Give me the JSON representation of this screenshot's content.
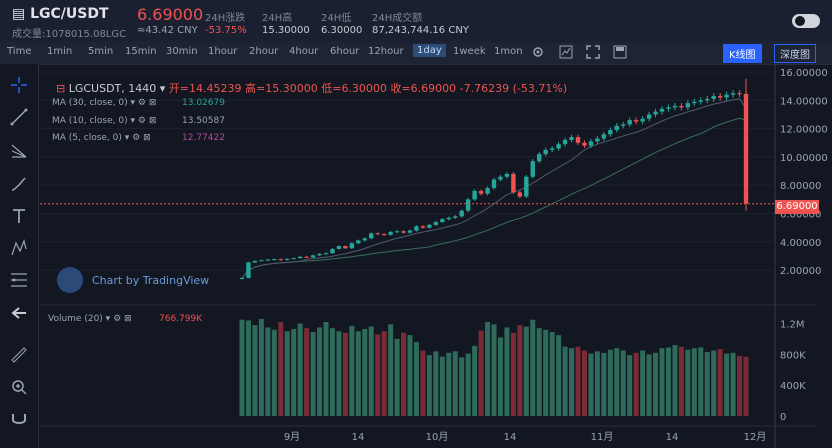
{
  "header": {
    "symbol": "LGC/USDT",
    "volume_label": "成交量:1078015.08LGC",
    "price": "6.69000",
    "cny": "≈43.42 CNY",
    "stats": [
      {
        "label": "24H涨跌",
        "value": "-53.75%",
        "color": "#ef5350"
      },
      {
        "label": "24H高",
        "value": "15.30000",
        "color": "#c8cbd2"
      },
      {
        "label": "24H低",
        "value": "6.30000",
        "color": "#c8cbd2"
      },
      {
        "label": "24H成交额",
        "value": "87,243,744.16 CNY",
        "color": "#c8cbd2"
      }
    ]
  },
  "toolbar": {
    "intervals": [
      "Time",
      "1min",
      "5min",
      "15min",
      "30min",
      "1hour",
      "2hour",
      "4hour",
      "6hour",
      "12hour",
      "1day",
      "1week",
      "1mon"
    ],
    "active": "1day",
    "kline_label": "K线图",
    "depth_label": "深度图"
  },
  "chart_header": {
    "symbol": "LGCUSDT, 1440",
    "open_label": "开=",
    "open": "14.45239",
    "high_label": "高=",
    "high": "15.30000",
    "low_label": "低=",
    "low": "6.30000",
    "close_label": "收=",
    "close": "6.69000",
    "change": "-7.76239 (-53.71%)"
  },
  "indicators": [
    {
      "label": "MA (30, close, 0)",
      "value": "13.02679",
      "color": "#26a69a"
    },
    {
      "label": "MA (10, close, 0)",
      "value": "13.50587",
      "color": "#9aa4b2"
    },
    {
      "label": "MA (5, close, 0)",
      "value": "12.77422",
      "color": "#b04a9a"
    }
  ],
  "watermark": "Chart by TradingView",
  "volume_legend": {
    "label": "Volume (20)",
    "value": "766.799K"
  },
  "current_price_label": "6.69000",
  "colors": {
    "up": "#26a69a",
    "down": "#ef5350",
    "bg": "#131722"
  },
  "chart_data": [
    {
      "type": "candlestick",
      "x_ticks": [
        "9月",
        "14",
        "10月",
        "14",
        "11月",
        "14",
        "12月"
      ],
      "y_ticks": [
        "2.00000",
        "4.00000",
        "6.00000",
        "8.00000",
        "10.00000",
        "12.00000",
        "14.00000",
        "16.00000"
      ],
      "ylim": [
        0.6,
        16.0
      ],
      "close_series": [
        1.45,
        2.55,
        2.65,
        2.7,
        2.75,
        2.78,
        2.72,
        2.8,
        2.85,
        2.95,
        2.9,
        3.05,
        3.15,
        3.2,
        3.5,
        3.7,
        3.55,
        3.9,
        4.1,
        4.25,
        4.6,
        4.55,
        4.5,
        4.7,
        4.75,
        4.65,
        4.8,
        5.1,
        5.0,
        5.2,
        5.4,
        5.6,
        5.7,
        5.8,
        6.2,
        7.0,
        7.6,
        7.4,
        7.8,
        8.4,
        8.6,
        8.8,
        7.5,
        7.2,
        8.6,
        9.7,
        10.2,
        10.5,
        10.6,
        10.9,
        11.2,
        11.4,
        11.0,
        10.8,
        11.1,
        11.3,
        11.6,
        11.9,
        12.2,
        12.3,
        12.6,
        12.5,
        12.7,
        13.0,
        13.2,
        13.4,
        13.5,
        13.6,
        13.5,
        13.8,
        13.9,
        14.0,
        14.1,
        14.3,
        14.2,
        14.4,
        14.5,
        14.45,
        6.69
      ]
    },
    {
      "type": "bar",
      "name": "Volume (20)",
      "y_ticks": [
        "0",
        "400K",
        "800K",
        "1.2M"
      ],
      "ylim": [
        0,
        1350000
      ],
      "values": [
        1250000,
        1240000,
        1180000,
        1260000,
        1150000,
        1120000,
        1220000,
        1100000,
        1130000,
        1200000,
        1140000,
        1090000,
        1150000,
        1220000,
        1140000,
        1100000,
        1080000,
        1170000,
        1100000,
        1130000,
        1160000,
        1060000,
        1100000,
        1190000,
        1000000,
        1080000,
        1050000,
        960000,
        850000,
        790000,
        840000,
        770000,
        820000,
        840000,
        760000,
        810000,
        910000,
        1110000,
        1220000,
        1190000,
        1020000,
        1150000,
        1080000,
        1180000,
        1160000,
        1250000,
        1140000,
        1120000,
        1090000,
        1050000,
        900000,
        880000,
        900000,
        850000,
        810000,
        840000,
        820000,
        860000,
        880000,
        850000,
        790000,
        820000,
        850000,
        800000,
        820000,
        880000,
        890000,
        920000,
        900000,
        860000,
        880000,
        890000,
        830000,
        850000,
        870000,
        810000,
        820000,
        780000,
        770000
      ]
    }
  ]
}
